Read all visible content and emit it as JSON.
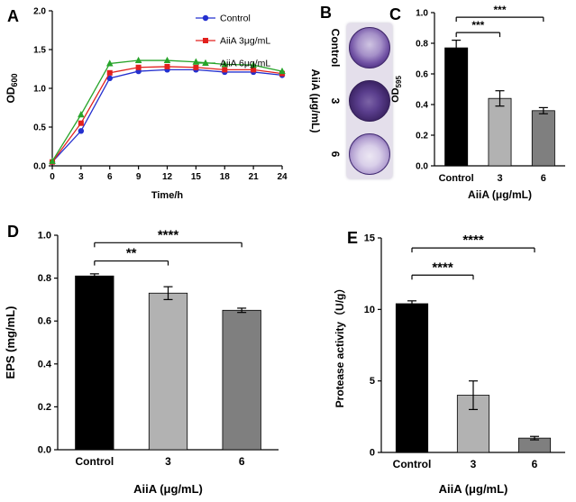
{
  "panels": {
    "a": {
      "label": "A"
    },
    "b": {
      "label": "B",
      "axis_label": "AiiA (μg/mL)",
      "row_labels": [
        "Control",
        "3",
        "6"
      ]
    },
    "c": {
      "label": "C"
    },
    "d": {
      "label": "D"
    },
    "e": {
      "label": "E"
    }
  },
  "chart_data": [
    {
      "id": "chart-a",
      "type": "line",
      "title": "",
      "xlabel": "Time/h",
      "ylabel": {
        "main": "OD",
        "sub": "600"
      },
      "x": [
        0,
        3,
        6,
        9,
        12,
        15,
        18,
        21,
        24
      ],
      "xticks": [
        0,
        3,
        6,
        9,
        12,
        15,
        18,
        21,
        24
      ],
      "xlim": [
        0,
        24
      ],
      "ylim": [
        0,
        2.0
      ],
      "yticks": [
        0,
        0.5,
        1.0,
        1.5,
        2.0
      ],
      "ytick_decimals": 1,
      "grid": false,
      "legend_position": "top-right",
      "series": [
        {
          "name": "Control",
          "color": "#2430cf",
          "marker": "circle",
          "values": [
            0.05,
            0.45,
            1.13,
            1.22,
            1.24,
            1.24,
            1.21,
            1.21,
            1.17
          ]
        },
        {
          "name": "AiiA 3μg/mL",
          "color": "#e2201d",
          "marker": "square",
          "values": [
            0.05,
            0.55,
            1.2,
            1.27,
            1.28,
            1.27,
            1.24,
            1.24,
            1.19
          ]
        },
        {
          "name": "AiiA 6μg/mL",
          "color": "#27a42a",
          "marker": "triangle",
          "values": [
            0.06,
            0.66,
            1.32,
            1.36,
            1.36,
            1.34,
            1.31,
            1.3,
            1.22
          ]
        }
      ]
    },
    {
      "id": "chart-c",
      "type": "bar",
      "xlabel": "AiiA (μg/mL)",
      "ylabel": {
        "main": "OD",
        "sub": "595"
      },
      "categories": [
        "Control",
        "3",
        "6"
      ],
      "values": [
        0.77,
        0.44,
        0.36
      ],
      "errors": [
        0.05,
        0.05,
        0.02
      ],
      "bar_colors": [
        "#000000",
        "#b2b2b2",
        "#7f7f7f"
      ],
      "ylim": [
        0,
        1.0
      ],
      "yticks": [
        0,
        0.2,
        0.4,
        0.6,
        0.8,
        1.0
      ],
      "ytick_decimals": 1,
      "significance": [
        {
          "from": 0,
          "to": 1,
          "y": 0.87,
          "label": "***"
        },
        {
          "from": 0,
          "to": 2,
          "y": 0.97,
          "label": "***"
        }
      ]
    },
    {
      "id": "chart-d",
      "type": "bar",
      "xlabel": "AiiA (μg/mL)",
      "ylabel": "EPS (mg/mL)",
      "categories": [
        "Control",
        "3",
        "6"
      ],
      "values": [
        0.81,
        0.73,
        0.65
      ],
      "errors": [
        0.01,
        0.03,
        0.01
      ],
      "bar_colors": [
        "#000000",
        "#b2b2b2",
        "#7f7f7f"
      ],
      "ylim": [
        0,
        1.0
      ],
      "yticks": [
        0,
        0.2,
        0.4,
        0.6,
        0.8,
        1.0
      ],
      "ytick_decimals": 1,
      "significance": [
        {
          "from": 0,
          "to": 1,
          "y": 0.88,
          "label": "**"
        },
        {
          "from": 0,
          "to": 2,
          "y": 0.965,
          "label": "****"
        }
      ]
    },
    {
      "id": "chart-e",
      "type": "bar",
      "xlabel": "AiiA (μg/mL)",
      "ylabel": "Protease activity（U/g）",
      "categories": [
        "Control",
        "3",
        "6"
      ],
      "values": [
        10.4,
        4.0,
        1.0
      ],
      "errors": [
        0.2,
        1.0,
        0.12
      ],
      "bar_colors": [
        "#000000",
        "#b2b2b2",
        "#7f7f7f"
      ],
      "ylim": [
        0,
        15
      ],
      "yticks": [
        0,
        5,
        10,
        15
      ],
      "ytick_decimals": 0,
      "significance": [
        {
          "from": 0,
          "to": 1,
          "y": 12.4,
          "label": "****"
        },
        {
          "from": 0,
          "to": 2,
          "y": 14.3,
          "label": "****"
        }
      ]
    }
  ]
}
